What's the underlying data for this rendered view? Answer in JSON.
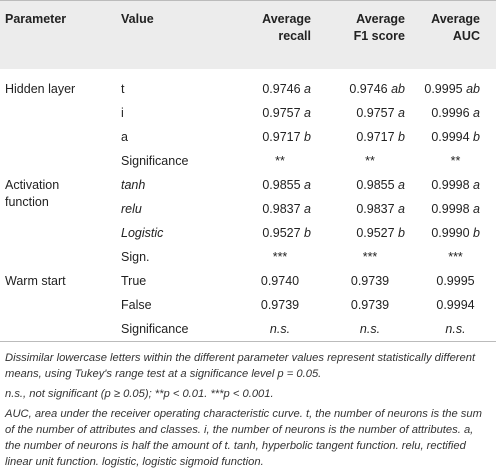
{
  "header": {
    "parameter": "Parameter",
    "value": "Value",
    "recall_1": "Average",
    "recall_2": "recall",
    "f1_1": "Average",
    "f1_2": "F1 score",
    "auc_1": "Average",
    "auc_2": "AUC"
  },
  "groups": {
    "hidden": {
      "label": "Hidden layer",
      "rows": [
        {
          "value": "t",
          "recall": "0.9746",
          "recall_l": "a",
          "f1": "0.9746",
          "f1_l": "ab",
          "auc": "0.9995",
          "auc_l": "ab"
        },
        {
          "value": "i",
          "recall": "0.9757",
          "recall_l": "a",
          "f1": "0.9757",
          "f1_l": "a",
          "auc": "0.9996",
          "auc_l": "a"
        },
        {
          "value": "a",
          "recall": "0.9717",
          "recall_l": "b",
          "f1": "0.9717",
          "f1_l": "b",
          "auc": "0.9994",
          "auc_l": "b"
        },
        {
          "value": "Significance",
          "recall": "**",
          "f1": "**",
          "auc": "**"
        }
      ]
    },
    "activation": {
      "label_1": "Activation",
      "label_2": "function",
      "rows": [
        {
          "value": "tanh",
          "recall": "0.9855",
          "recall_l": "a",
          "f1": "0.9855",
          "f1_l": "a",
          "auc": "0.9998",
          "auc_l": "a"
        },
        {
          "value": "relu",
          "recall": "0.9837",
          "recall_l": "a",
          "f1": "0.9837",
          "f1_l": "a",
          "auc": "0.9998",
          "auc_l": "a"
        },
        {
          "value": "Logistic",
          "recall": "0.9527",
          "recall_l": "b",
          "f1": "0.9527",
          "f1_l": "b",
          "auc": "0.9990",
          "auc_l": "b"
        },
        {
          "value": "Sign.",
          "recall": "***",
          "f1": "***",
          "auc": "***"
        }
      ]
    },
    "warm": {
      "label": "Warm start",
      "rows": [
        {
          "value": "True",
          "recall": "0.9740",
          "f1": "0.9739",
          "auc": "0.9995"
        },
        {
          "value": "False",
          "recall": "0.9739",
          "f1": "0.9739",
          "auc": "0.9994"
        },
        {
          "value": "Significance",
          "recall": "n.s.",
          "f1": "n.s.",
          "auc": "n.s."
        }
      ]
    }
  },
  "footnotes": [
    "Dissimilar lowercase letters within the different parameter values represent statistically different means, using Tukey's range test at a significance level p = 0.05.",
    "n.s., not significant (p ≥ 0.05); **p < 0.01. ***p < 0.001.",
    "AUC, area under the receiver operating characteristic curve. t, the number of neurons is the sum of the number of attributes and classes. i, the number of neurons is the number of attributes. a, the number of neurons is half the amount of t. tanh, hyperbolic tangent function. relu, rectified linear unit function. logistic, logistic sigmoid function."
  ]
}
